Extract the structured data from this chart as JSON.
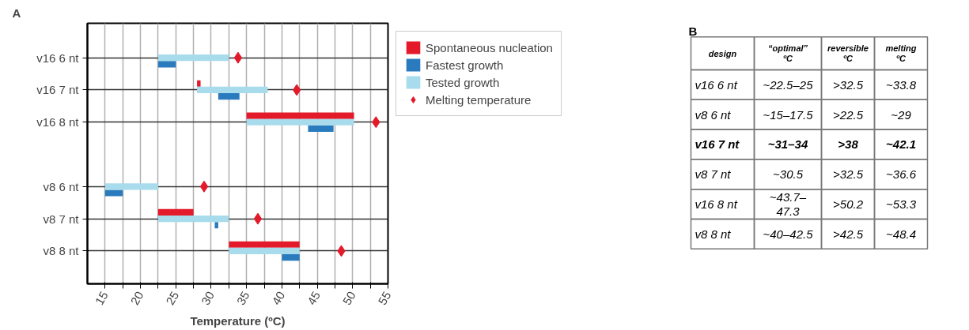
{
  "chart_data": [
    {
      "type": "bar",
      "title": "A",
      "orientation": "horizontal",
      "xlabel": "Temperature (ºC)",
      "categories": [
        "v16 6 nt",
        "v16 7 nt",
        "v16 8 nt",
        null,
        "v8 6 nt",
        "v8 7 nt",
        "v8 8 nt"
      ],
      "series": [
        {
          "name": "Spontaneous nucleation",
          "color": "#e31a2a",
          "base": [
            null,
            28,
            35,
            null,
            null,
            22.5,
            32.5
          ],
          "values": [
            null,
            0.5,
            15.2,
            null,
            null,
            5,
            10
          ]
        },
        {
          "name": "Fastest growth",
          "color": "#2a7bbd",
          "base": [
            22.5,
            31,
            43.7,
            null,
            15,
            30.5,
            40
          ],
          "values": [
            2.5,
            3,
            3.6,
            null,
            2.5,
            0.5,
            2.5
          ]
        },
        {
          "name": "Tested growth",
          "color": "#a8dbeb",
          "base": [
            22.5,
            28,
            35,
            null,
            15,
            22.5,
            32.5
          ],
          "values": [
            10,
            10,
            15.2,
            null,
            7.5,
            10,
            10
          ]
        },
        {
          "name": "Melting temperature",
          "type": "scatter",
          "marker": "diamond",
          "color": "#e31a2a",
          "values": [
            33.8,
            42.1,
            53.3,
            null,
            29,
            36.6,
            48.4
          ]
        }
      ],
      "xlim": [
        12.5,
        55
      ],
      "xticks": [
        15,
        {
          "value": 17.5,
          "label": null
        },
        20,
        {
          "value": 22.5,
          "label": null
        },
        25,
        {
          "value": 27.5,
          "label": null
        },
        30,
        {
          "value": 32.5,
          "label": null
        },
        35,
        {
          "value": 37.5,
          "label": null
        },
        40,
        {
          "value": 42.5,
          "label": null
        },
        45,
        {
          "value": 47.5,
          "label": null
        },
        50,
        {
          "value": 52.5,
          "label": null
        },
        55
      ],
      "grid": true,
      "legend": "right"
    },
    {
      "type": "other",
      "title": "B",
      "categories": [
        "design",
        "“optimal”\nºC",
        "reversible\nºC",
        "melting\nºC"
      ],
      "annotations": [
        "v16 6 nt",
        "~22.5–25",
        ">32.5",
        "~33.8",
        "v8 6 nt",
        "~15–17.5",
        ">22.5",
        "~29",
        "v16 7 nt",
        "~31–34",
        ">38",
        "~42.1",
        "v8 7 nt",
        "~30.5",
        ">32.5",
        "~36.6",
        "v16 8 nt",
        "~43.7–\n47.3",
        ">50.2",
        "~53.3",
        "v8 8 nt",
        "~40–42.5",
        ">42.5",
        "~48.4"
      ]
    }
  ]
}
